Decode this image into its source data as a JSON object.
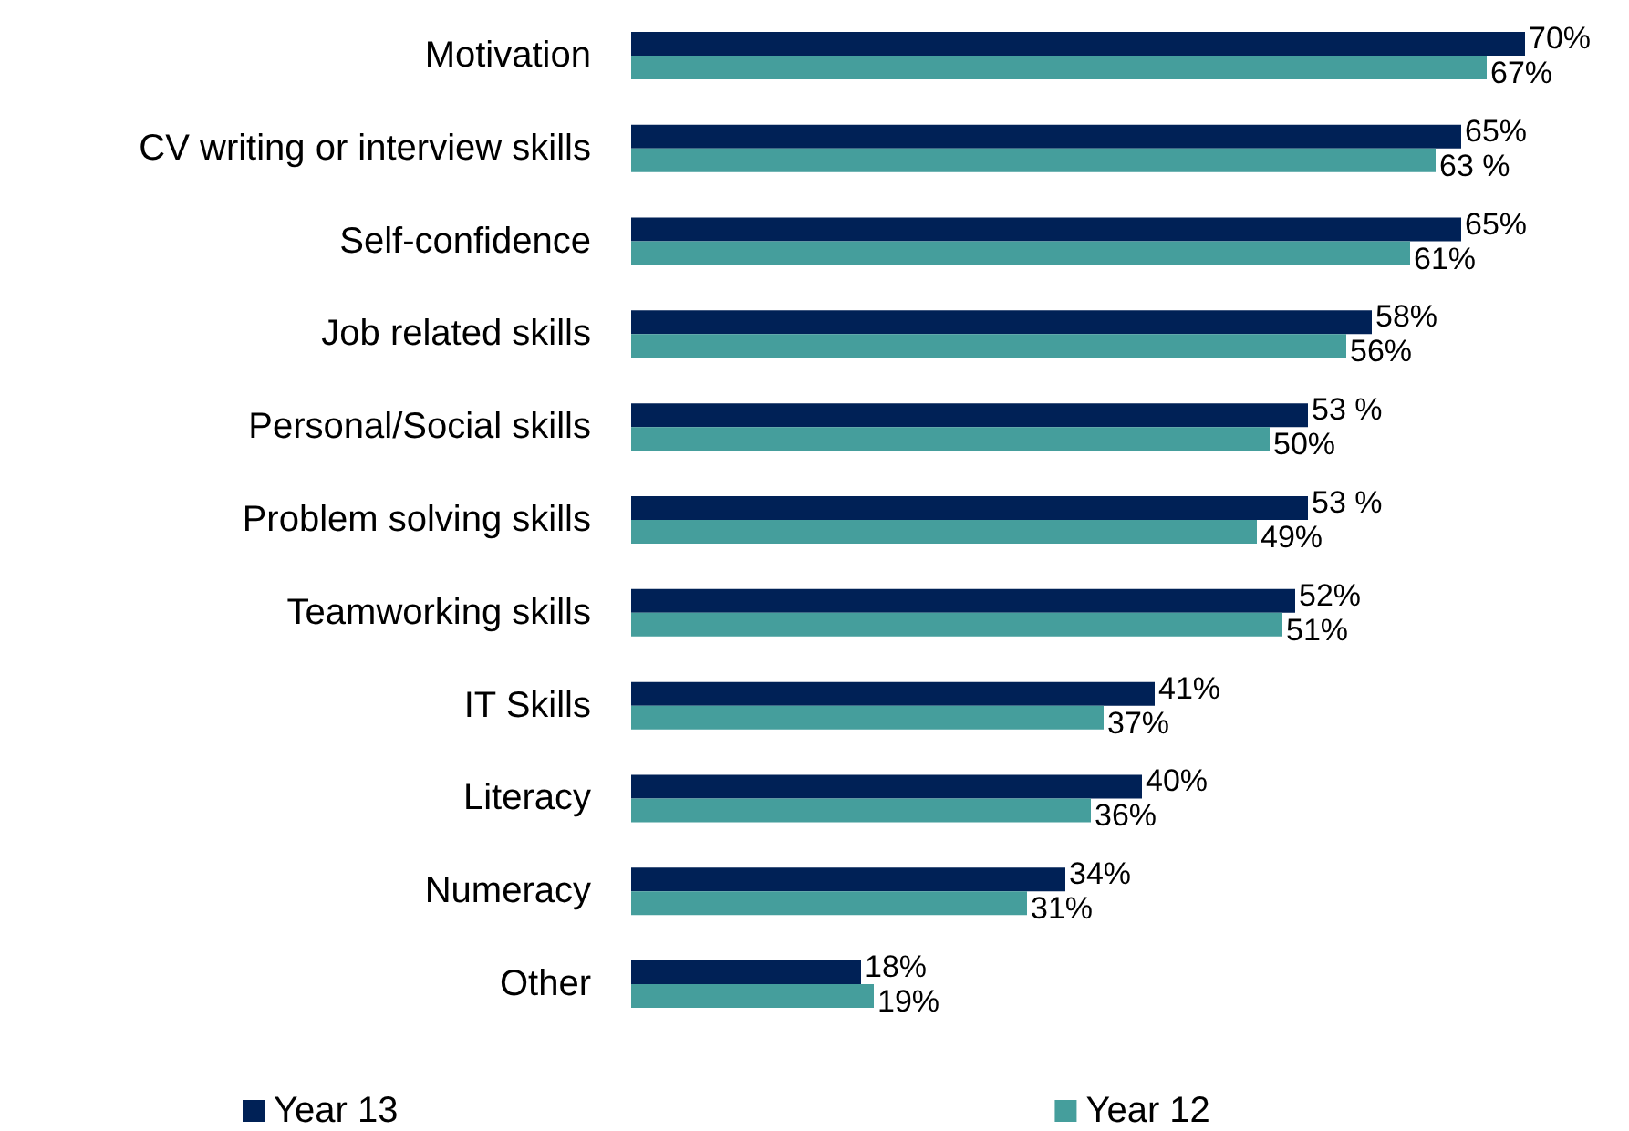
{
  "chart_data": {
    "type": "bar",
    "orientation": "horizontal",
    "categories": [
      "Motivation",
      "CV writing or interview skills",
      "Self-confidence",
      "Job related skills",
      "Personal/Social skills",
      "Problem solving skills",
      "Teamworking skills",
      "IT Skills",
      "Literacy",
      "Numeracy",
      "Other"
    ],
    "series": [
      {
        "name": "Year 13",
        "color": "#002156",
        "values": [
          70,
          65,
          65,
          58,
          53,
          53,
          52,
          41,
          40,
          34,
          18
        ],
        "value_labels": [
          "70%",
          "65%",
          "65%",
          "58%",
          "53 %",
          "53 %",
          "52%",
          "41%",
          "40%",
          "34%",
          "18%"
        ]
      },
      {
        "name": "Year 12",
        "color": "#459e9c",
        "values": [
          67,
          63,
          61,
          56,
          50,
          49,
          51,
          37,
          36,
          31,
          19
        ],
        "value_labels": [
          "67%",
          "63 %",
          "61%",
          "56%",
          "50%",
          "49%",
          "51%",
          "37%",
          "36%",
          "31%",
          "19%"
        ]
      }
    ],
    "legend": "bottom"
  }
}
